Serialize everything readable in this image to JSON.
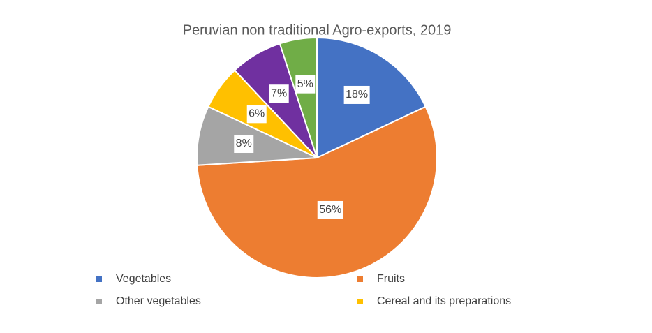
{
  "chart_data": {
    "type": "pie",
    "title": "Peruvian non traditional Agro-exports, 2019",
    "categories": [
      "Vegetables",
      "Fruits",
      "Other vegetables",
      "Cereal and its preparations",
      null,
      null
    ],
    "values": [
      18,
      56,
      8,
      6,
      7,
      5
    ],
    "value_labels": [
      "18%",
      "56%",
      "8%",
      "6%",
      "7%",
      "5%"
    ],
    "colors": [
      "#4472c4",
      "#ed7d31",
      "#a5a5a5",
      "#ffc000",
      "#7030a0",
      "#70ad47"
    ],
    "legend": "bottom"
  }
}
